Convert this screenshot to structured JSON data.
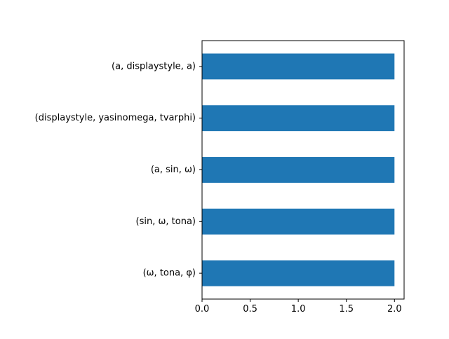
{
  "chart_data": {
    "type": "bar",
    "orientation": "horizontal",
    "categories": [
      "(a, displaystyle, a)",
      "(displaystyle, yasinomega, tvarphi)",
      "(a, sin, ω)",
      "(sin, ω, tona)",
      "(ω, tona, φ)"
    ],
    "values": [
      2,
      2,
      2,
      2,
      2
    ],
    "title": "",
    "xlabel": "",
    "ylabel": "",
    "xlim": [
      0,
      2.1
    ],
    "xticks": [
      0.0,
      0.5,
      1.0,
      1.5,
      2.0
    ],
    "xtick_labels": [
      "0.0",
      "0.5",
      "1.0",
      "1.5",
      "2.0"
    ],
    "grid": false,
    "legend": false,
    "bar_color": "#1f77b4"
  }
}
